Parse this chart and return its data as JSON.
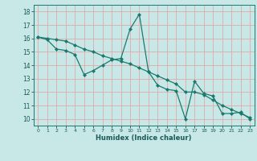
{
  "xlabel": "Humidex (Indice chaleur)",
  "xlim": [
    -0.5,
    23.5
  ],
  "ylim": [
    9.5,
    18.5
  ],
  "xticks": [
    0,
    1,
    2,
    3,
    4,
    5,
    6,
    7,
    8,
    9,
    10,
    11,
    12,
    13,
    14,
    15,
    16,
    17,
    18,
    19,
    20,
    21,
    22,
    23
  ],
  "yticks": [
    10,
    11,
    12,
    13,
    14,
    15,
    16,
    17,
    18
  ],
  "bg_color": "#c8e8e8",
  "grid_color": "#e0a8a8",
  "line_color": "#1a7a6e",
  "line1_x": [
    0,
    1,
    2,
    3,
    4,
    5,
    6,
    7,
    8,
    9,
    10,
    11,
    12,
    13,
    14,
    15,
    16,
    17,
    18,
    19,
    20,
    21,
    22,
    23
  ],
  "line1_y": [
    16.1,
    15.9,
    15.2,
    15.1,
    14.8,
    13.3,
    13.6,
    14.0,
    14.4,
    14.5,
    16.7,
    17.8,
    13.5,
    12.5,
    12.2,
    12.1,
    10.0,
    12.8,
    11.9,
    11.7,
    10.4,
    10.4,
    10.5,
    10.0
  ],
  "line2_x": [
    0,
    1,
    2,
    3,
    4,
    5,
    6,
    7,
    8,
    9,
    10,
    11,
    12,
    13,
    14,
    15,
    16,
    17,
    18,
    19,
    20,
    21,
    22,
    23
  ],
  "line2_y": [
    16.1,
    16.0,
    15.9,
    15.8,
    15.5,
    15.2,
    15.0,
    14.7,
    14.5,
    14.3,
    14.1,
    13.8,
    13.5,
    13.2,
    12.9,
    12.6,
    12.0,
    12.0,
    11.8,
    11.4,
    11.0,
    10.7,
    10.4,
    10.1
  ],
  "marker": "D",
  "markersize": 2.0,
  "linewidth": 0.9
}
